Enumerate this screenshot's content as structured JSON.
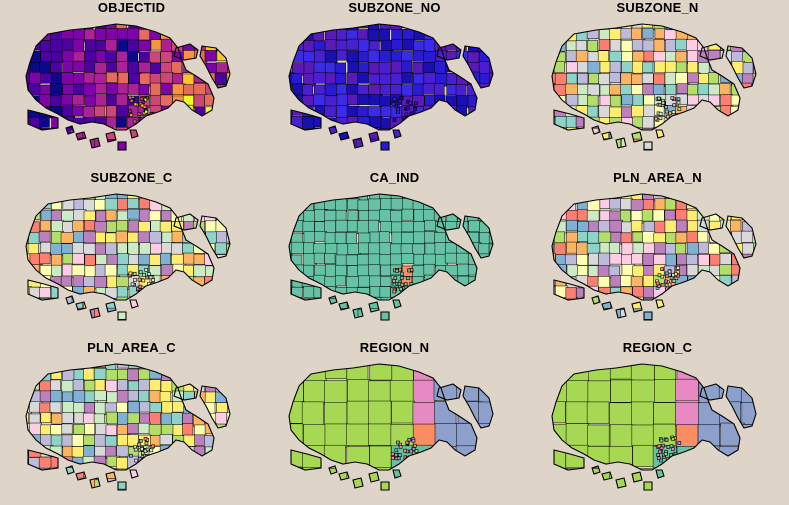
{
  "figure": {
    "background": "#dfd4c8",
    "panels": [
      {
        "title": "OBJECTID",
        "palette": "plasma",
        "id": "objectid"
      },
      {
        "title": "SUBZONE_NO",
        "palette": "blue",
        "id": "subzone-no"
      },
      {
        "title": "SUBZONE_N",
        "palette": "pastel",
        "id": "subzone-n"
      },
      {
        "title": "SUBZONE_C",
        "palette": "pastel2",
        "id": "subzone-c"
      },
      {
        "title": "CA_IND",
        "palette": "ca",
        "id": "ca-ind"
      },
      {
        "title": "PLN_AREA_N",
        "palette": "area",
        "id": "pln-area-n"
      },
      {
        "title": "PLN_AREA_C",
        "palette": "area2",
        "id": "pln-area-c"
      },
      {
        "title": "REGION_N",
        "palette": "region",
        "id": "region-n"
      },
      {
        "title": "REGION_C",
        "palette": "region2",
        "id": "region-c"
      }
    ],
    "colors": {
      "plasma": [
        "#0d0887",
        "#4c02a1",
        "#7e03a8",
        "#a92395",
        "#cc4778",
        "#e56b5d",
        "#f89441",
        "#fdc328",
        "#f0f921"
      ],
      "blue": [
        "#1a0fb0",
        "#2a1ad0",
        "#3b2be8",
        "#4a1fd0",
        "#5a1ab8"
      ],
      "pastel": [
        "#8dd3c7",
        "#ffffb3",
        "#bebada",
        "#fb8072",
        "#80b1d3",
        "#fdb462",
        "#b3de69",
        "#fccde5",
        "#d9d9d9",
        "#bc80bd",
        "#ccebc5",
        "#ffed6f"
      ],
      "ca": [
        "#66c2a5",
        "#66c2a5",
        "#66c2a5",
        "#66c2a5",
        "#fc8d62"
      ],
      "region": [
        "#66c2a5",
        "#fc8d62",
        "#8da0cb",
        "#e78ac3",
        "#a6d854"
      ]
    }
  }
}
